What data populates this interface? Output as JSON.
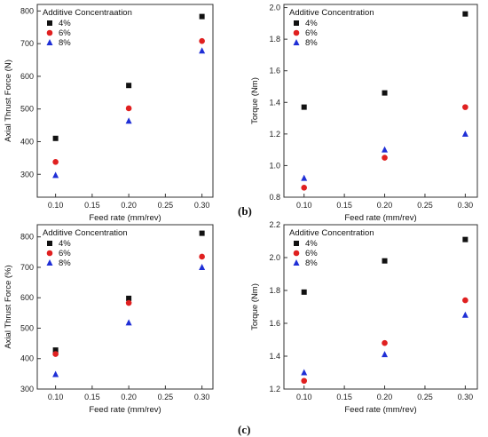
{
  "panel_labels": [
    "(b)",
    "(c)"
  ],
  "colors": {
    "4%": "#111111",
    "6%": "#e02020",
    "8%": "#1f2fd6"
  },
  "chart_data": [
    {
      "type": "scatter",
      "xlabel": "Feed rate (mm/rev)",
      "ylabel": "Axial Thrust Force (N)",
      "xlim": [
        0.075,
        0.315
      ],
      "ylim": [
        230,
        820
      ],
      "xticks": [
        "0.10",
        "0.15",
        "0.20",
        "0.25",
        "0.30"
      ],
      "yticks": [
        "300",
        "400",
        "500",
        "600",
        "700",
        "800"
      ],
      "legend_title": "Additive Concentraation",
      "series": [
        {
          "name": "4%",
          "marker": "square",
          "x": [
            0.1,
            0.2,
            0.3
          ],
          "y": [
            410,
            572,
            783
          ]
        },
        {
          "name": "6%",
          "marker": "circle",
          "x": [
            0.1,
            0.2,
            0.3
          ],
          "y": [
            338,
            502,
            708
          ]
        },
        {
          "name": "8%",
          "marker": "triangle",
          "x": [
            0.1,
            0.2,
            0.3
          ],
          "y": [
            297,
            463,
            678
          ]
        }
      ]
    },
    {
      "type": "scatter",
      "xlabel": "Feed rate (mm/rev)",
      "ylabel": "Torque (Nm)",
      "xlim": [
        0.075,
        0.315
      ],
      "ylim": [
        0.8,
        2.02
      ],
      "xticks": [
        "0.10",
        "0.15",
        "0.20",
        "0.25",
        "0.30"
      ],
      "yticks": [
        "0.8",
        "1.0",
        "1.2",
        "1.4",
        "1.6",
        "1.8",
        "2.0"
      ],
      "legend_title": "Additive Concentration",
      "series": [
        {
          "name": "4%",
          "marker": "square",
          "x": [
            0.1,
            0.2,
            0.3
          ],
          "y": [
            1.37,
            1.46,
            1.96
          ]
        },
        {
          "name": "6%",
          "marker": "circle",
          "x": [
            0.1,
            0.2,
            0.3
          ],
          "y": [
            0.86,
            1.05,
            1.37
          ]
        },
        {
          "name": "8%",
          "marker": "triangle",
          "x": [
            0.1,
            0.2,
            0.3
          ],
          "y": [
            0.92,
            1.1,
            1.2
          ]
        }
      ]
    },
    {
      "type": "scatter",
      "xlabel": "Feed rate (mm/rev)",
      "ylabel": "Axial Thrust Force (%)",
      "xlim": [
        0.075,
        0.315
      ],
      "ylim": [
        300,
        840
      ],
      "xticks": [
        "0.10",
        "0.15",
        "0.20",
        "0.25",
        "0.30"
      ],
      "yticks": [
        "300",
        "400",
        "500",
        "600",
        "700",
        "800"
      ],
      "legend_title": "Additive Concentration",
      "series": [
        {
          "name": "4%",
          "marker": "square",
          "x": [
            0.1,
            0.2,
            0.3
          ],
          "y": [
            428,
            598,
            812
          ]
        },
        {
          "name": "6%",
          "marker": "circle",
          "x": [
            0.1,
            0.2,
            0.3
          ],
          "y": [
            415,
            583,
            735
          ]
        },
        {
          "name": "8%",
          "marker": "triangle",
          "x": [
            0.1,
            0.2,
            0.3
          ],
          "y": [
            348,
            518,
            700
          ]
        }
      ]
    },
    {
      "type": "scatter",
      "xlabel": "Feed rate (mm/rev)",
      "ylabel": "Torque (Nm)",
      "xlim": [
        0.075,
        0.315
      ],
      "ylim": [
        1.2,
        2.2
      ],
      "xticks": [
        "0.10",
        "0.15",
        "0.20",
        "0.25",
        "0.30"
      ],
      "yticks": [
        "1.2",
        "1.4",
        "1.6",
        "1.8",
        "2.0",
        "2.2"
      ],
      "legend_title": "Additive Concentration",
      "series": [
        {
          "name": "4%",
          "marker": "square",
          "x": [
            0.1,
            0.2,
            0.3
          ],
          "y": [
            1.79,
            1.98,
            2.11
          ]
        },
        {
          "name": "6%",
          "marker": "circle",
          "x": [
            0.1,
            0.2,
            0.3
          ],
          "y": [
            1.25,
            1.48,
            1.74
          ]
        },
        {
          "name": "8%",
          "marker": "triangle",
          "x": [
            0.1,
            0.2,
            0.3
          ],
          "y": [
            1.3,
            1.41,
            1.65
          ]
        }
      ]
    }
  ]
}
